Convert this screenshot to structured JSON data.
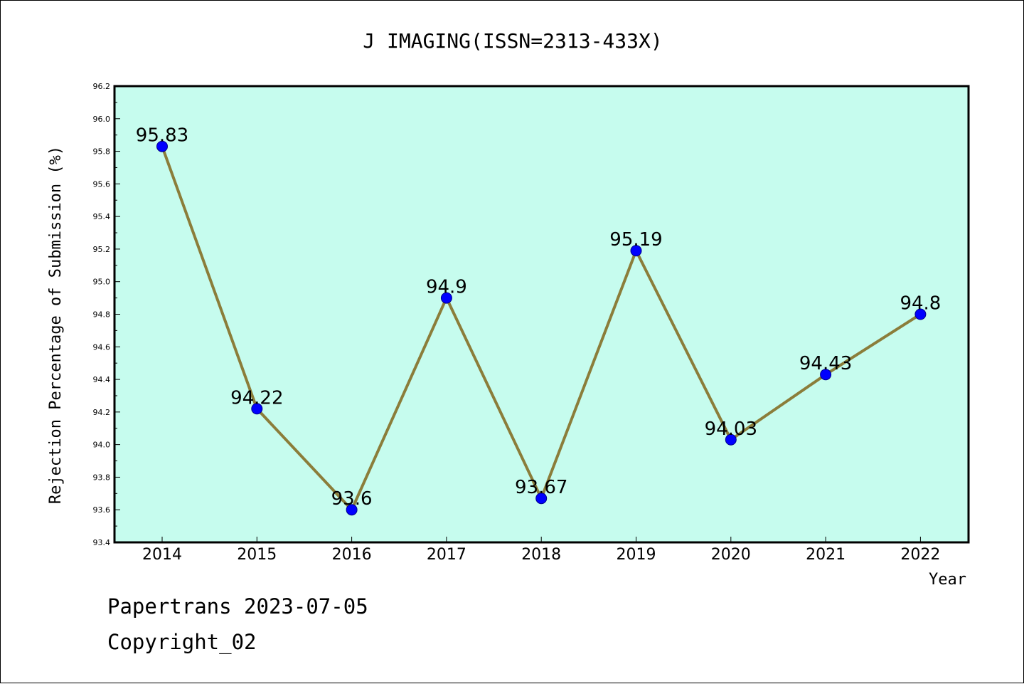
{
  "chart_data": {
    "type": "line",
    "title": "J IMAGING(ISSN=2313-433X)",
    "xlabel": "Year",
    "ylabel": "Rejection Percentage of Submission (%)",
    "categories": [
      "2014",
      "2015",
      "2016",
      "2017",
      "2018",
      "2019",
      "2020",
      "2021",
      "2022"
    ],
    "series": [
      {
        "values": [
          95.83,
          94.22,
          93.6,
          94.9,
          93.67,
          95.19,
          94.03,
          94.43,
          94.8
        ],
        "labels": [
          "95.83",
          "94.22",
          "93.6",
          "94.9",
          "93.67",
          "95.19",
          "94.03",
          "94.43",
          "94.8"
        ]
      }
    ],
    "ylim": [
      93.4,
      96.2
    ],
    "yticks": [
      "93.4",
      "93.6",
      "93.8",
      "94.0",
      "94.2",
      "94.4",
      "94.6",
      "94.8",
      "95.0",
      "95.2",
      "95.4",
      "95.6",
      "95.8",
      "96.0",
      "96.2"
    ],
    "grid": false,
    "colors": {
      "plot_background": "#c6fcee",
      "line": "#8b7d3a",
      "marker": "#0000ff",
      "marker_edge": "#00008b"
    }
  },
  "footer": {
    "line1": "Papertrans 2023-07-05",
    "line2": "Copyright_02"
  }
}
